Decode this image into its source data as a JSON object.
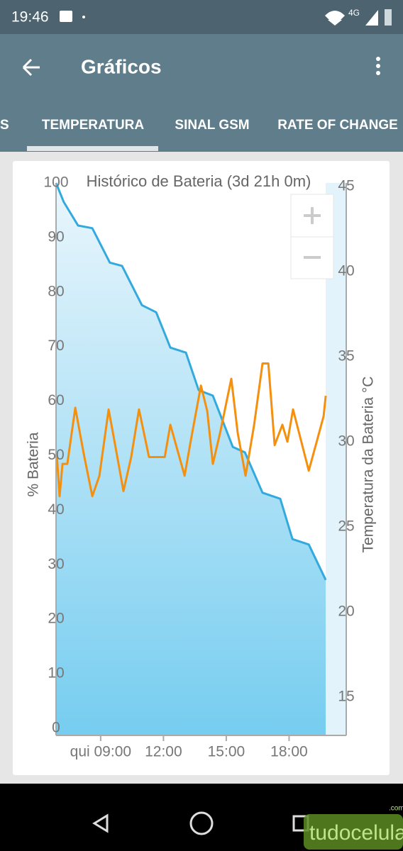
{
  "status_bar": {
    "time": "19:46",
    "network": "4G"
  },
  "app_bar": {
    "title": "Gráficos"
  },
  "tabs": [
    "S",
    "TEMPERATURA",
    "SINAL GSM",
    "RATE OF CHANGE"
  ],
  "watermark": {
    "name": "tudocelular",
    "suffix": ".com"
  },
  "chart_data": {
    "type": "line",
    "title": "Histórico de Bateria (3d 21h 0m)",
    "y_label": "% Bateria",
    "y2_label": "Temperatura da Bateria °C",
    "xlim": [
      6.87,
      20.73
    ],
    "xticks": [
      {
        "value": 9,
        "label": "qui 09:00"
      },
      {
        "value": 12,
        "label": "12:00"
      },
      {
        "value": 15,
        "label": "15:00"
      },
      {
        "value": 18,
        "label": "18:00"
      }
    ],
    "ylim": [
      -1.3,
      100
    ],
    "yticks": [
      0,
      10,
      20,
      30,
      40,
      50,
      60,
      70,
      80,
      90,
      100
    ],
    "y2lim": [
      12.75,
      45.2
    ],
    "y2ticks": [
      15,
      20,
      25,
      30,
      35,
      40,
      45
    ],
    "series": [
      {
        "color": "#33aadd",
        "fill": true,
        "x": [
          6.87,
          7.24,
          7.92,
          8.6,
          9.44,
          10.02,
          10.97,
          11.65,
          12.33,
          13.07,
          13.68,
          14.36,
          15.31,
          15.89,
          16.73,
          17.58,
          18.16,
          18.94,
          19.75
        ],
        "values": [
          100,
          96.5,
          92.2,
          91.7,
          85.4,
          84.8,
          77.6,
          76.3,
          69.8,
          68.9,
          62.0,
          61.0,
          51.6,
          50.6,
          43.2,
          42.1,
          34.7,
          33.7,
          27.2
        ]
      },
      {
        "color": "#f5900f",
        "axis": "y2",
        "x": [
          6.9,
          7.04,
          7.18,
          7.41,
          7.79,
          8.19,
          8.6,
          8.94,
          9.38,
          9.68,
          10.09,
          10.46,
          10.83,
          11.31,
          12.06,
          12.33,
          13.01,
          13.28,
          13.79,
          14.09,
          14.36,
          14.7,
          15.24,
          15.55,
          15.92,
          16.33,
          16.73,
          17.01,
          17.31,
          17.68,
          17.92,
          18.19,
          18.94,
          19.34,
          19.65,
          19.75
        ],
        "values": [
          29.3,
          26.8,
          28.7,
          28.7,
          32.0,
          29.3,
          26.8,
          28.0,
          31.9,
          29.9,
          27.1,
          29.1,
          31.9,
          29.1,
          29.1,
          31.0,
          28.0,
          29.9,
          33.3,
          31.8,
          28.7,
          30.5,
          33.7,
          30.5,
          28.0,
          31.0,
          34.6,
          34.6,
          29.8,
          31.0,
          30.0,
          31.9,
          28.3,
          30.1,
          31.5,
          32.7
        ]
      }
    ]
  }
}
